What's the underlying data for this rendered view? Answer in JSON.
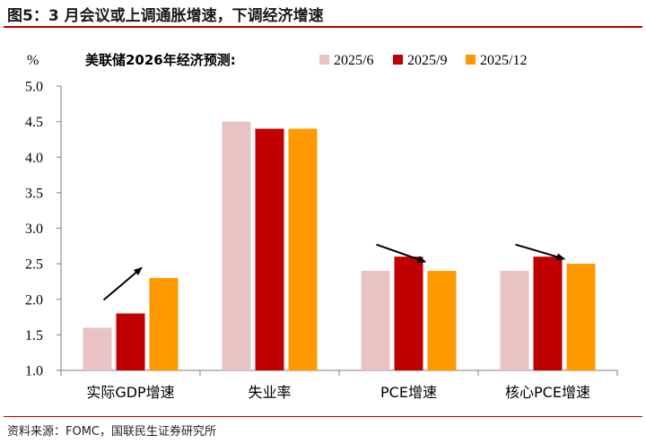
{
  "figure_title": "图5：3 月会议或上调通胀增速，下调经济增速",
  "source": "资料来源：FOMC，国联民生证券研究所",
  "chart_data": {
    "type": "bar",
    "title": "美联储2026年经济预测:",
    "ylabel": "%",
    "xlabel": "",
    "ylim": [
      1.0,
      5.0
    ],
    "yticks": [
      "1.0",
      "1.5",
      "2.0",
      "2.5",
      "3.0",
      "3.5",
      "4.0",
      "4.5",
      "5.0"
    ],
    "categories": [
      "实际GDP增速",
      "失业率",
      "PCE增速",
      "核心PCE增速"
    ],
    "series": [
      {
        "name": "2025/6",
        "color": "#e9c3c4",
        "values": [
          1.6,
          4.5,
          2.4,
          2.4
        ]
      },
      {
        "name": "2025/9",
        "color": "#c00000",
        "values": [
          1.8,
          4.4,
          2.6,
          2.6
        ]
      },
      {
        "name": "2025/12",
        "color": "#ff9900",
        "values": [
          2.3,
          4.4,
          2.4,
          2.5
        ]
      }
    ],
    "legend_position": "top-right",
    "grid": false,
    "annotations": [
      {
        "type": "arrow",
        "category": "实际GDP增速",
        "direction": "up",
        "from": 1.99,
        "to": 2.44
      },
      {
        "type": "arrow",
        "category": "PCE增速",
        "direction": "down",
        "from": 2.77,
        "to": 2.53
      },
      {
        "type": "arrow",
        "category": "核心PCE增速",
        "direction": "down",
        "from": 2.77,
        "to": 2.57
      }
    ]
  }
}
